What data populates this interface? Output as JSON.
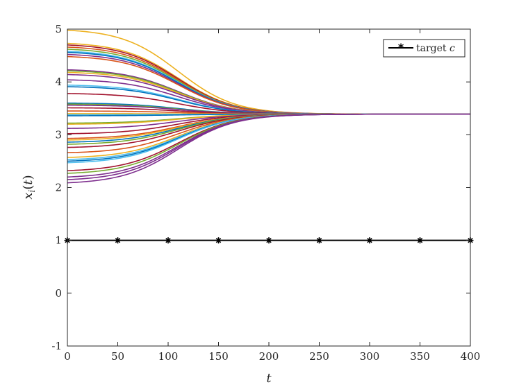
{
  "chart_data": {
    "type": "line",
    "xlabel": "t",
    "ylabel": "x_i(t)",
    "xlim": [
      0,
      400
    ],
    "ylim": [
      -1,
      5
    ],
    "xticks": [
      "0",
      "50",
      "100",
      "150",
      "200",
      "250",
      "300",
      "350",
      "400"
    ],
    "yticks": [
      "-1",
      "0",
      "1",
      "2",
      "3",
      "4",
      "5"
    ],
    "grid": false,
    "legend_position": "top-right",
    "legend": [
      "target c"
    ],
    "consensus_value": 3.39,
    "agent_initial_values": [
      4.98,
      4.73,
      4.7,
      4.66,
      4.62,
      4.58,
      4.56,
      4.52,
      4.48,
      4.23,
      4.21,
      4.18,
      4.14,
      4.04,
      3.94,
      3.91,
      3.78,
      3.6,
      3.58,
      3.56,
      3.51,
      3.45,
      3.4,
      3.38,
      3.36,
      3.22,
      3.2,
      3.12,
      3.02,
      2.93,
      2.9,
      2.86,
      2.82,
      2.76,
      2.66,
      2.57,
      2.53,
      2.5,
      2.47,
      2.32,
      2.27,
      2.2,
      2.15,
      2.09
    ],
    "agent_colors": [
      "#EDB120",
      "#EDB120",
      "#A2142F",
      "#D95319",
      "#77AC30",
      "#4DBEEE",
      "#0072BD",
      "#7E2F8E",
      "#D95319",
      "#7E2F8E",
      "#77AC30",
      "#EDB120",
      "#7E2F8E",
      "#7E2F8E",
      "#4DBEEE",
      "#0072BD",
      "#A2142F",
      "#0072BD",
      "#77AC30",
      "#7E2F8E",
      "#A2142F",
      "#D95319",
      "#EDB120",
      "#4DBEEE",
      "#0072BD",
      "#77AC30",
      "#EDB120",
      "#7E2F8E",
      "#A2142F",
      "#D95319",
      "#EDB120",
      "#0072BD",
      "#77AC30",
      "#A2142F",
      "#D95319",
      "#EDB120",
      "#4DBEEE",
      "#0072BD",
      "#4DBEEE",
      "#A2142F",
      "#77AC30",
      "#7E2F8E",
      "#7E2F8E",
      "#7E2F8E"
    ],
    "agent_midpoint_t": 110,
    "agent_transition_width_t": 28,
    "series": [
      {
        "name": "target c",
        "x": [
          0,
          50,
          100,
          150,
          200,
          250,
          300,
          350,
          400
        ],
        "y": [
          1,
          1,
          1,
          1,
          1,
          1,
          1,
          1,
          1
        ],
        "color": "#000000",
        "marker": "asterisk"
      }
    ]
  }
}
